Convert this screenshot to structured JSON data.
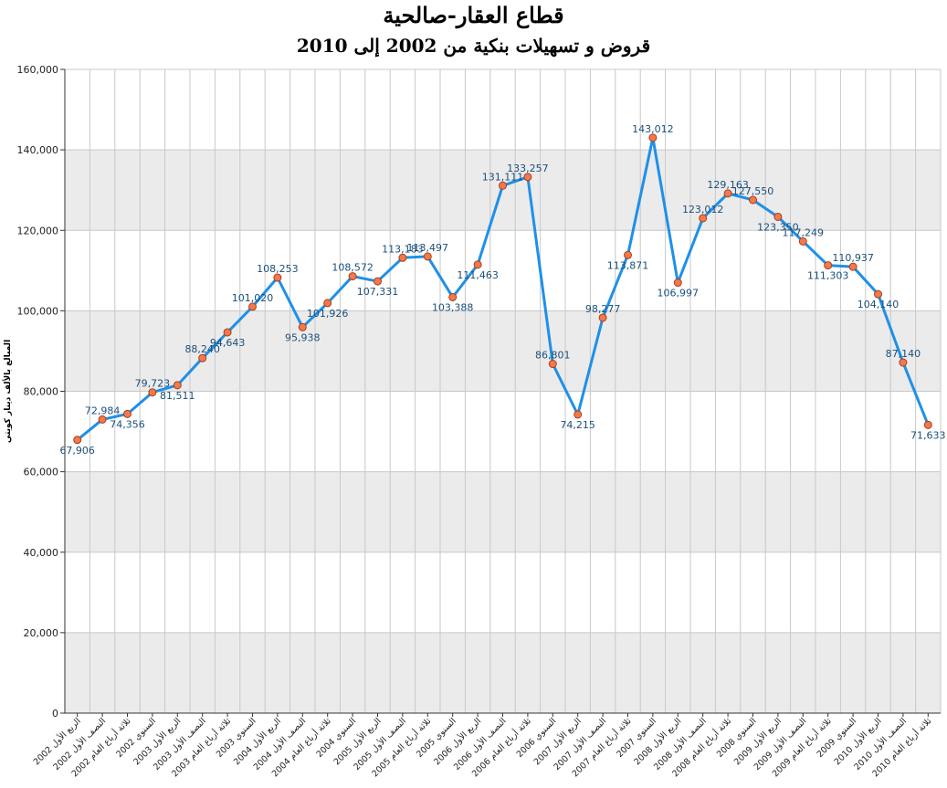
{
  "chart_data": {
    "type": "line",
    "title": "قطاع العقار-صالحية",
    "subtitle": "قروض و تسهيلات بنكية من 2002 إلى 2010",
    "ylabel": "المبالغ بالألف دينار كويتي",
    "xlabel": "",
    "ylim": [
      0,
      160000
    ],
    "yticks": [
      "0",
      "20,000",
      "40,000",
      "60,000",
      "80,000",
      "100,000",
      "120,000",
      "140,000",
      "160,000"
    ],
    "grid": "alternating horizontal bands with vertical grid lines",
    "legend": "none",
    "colors": {
      "line": "#1e90e8",
      "marker_fill": "#f07a4a",
      "marker_stroke": "#b03a1a",
      "band": "#ebebeb",
      "label": "#1a4f7a"
    },
    "categories": [
      "الربع الأول 2002",
      "النصف الأول 2002",
      "ثلاثة أرباع العام 2002",
      "السنوي 2002",
      "الربع الأول 2003",
      "النصف الأول 2003",
      "ثلاثة أرباع العام 2003",
      "السنوي 2003",
      "الربع الأول 2004",
      "النصف الأول 2004",
      "ثلاثة أرباع العام 2004",
      "السنوي 2004",
      "الربع الأول 2005",
      "النصف الأول 2005",
      "ثلاثة أرباع العام 2005",
      "السنوي 2005",
      "الربع الأول 2006",
      "النصف الأول 2006",
      "ثلاثة أرباع العام 2006",
      "السنوي 2006",
      "الربع الأول 2007",
      "النصف الأول 2007",
      "ثلاثة أرباع العام 2007",
      "السنوي 2007",
      "الربع الأول 2008",
      "النصف الأول 2008",
      "ثلاثة أرباع العام 2008",
      "السنوي 2008",
      "الربع الأول 2009",
      "النصف الأول 2009",
      "ثلاثة أرباع العام 2009",
      "السنوي 2009",
      "الربع الأول 2010",
      "النصف الأول 2010",
      "ثلاثة أرباع العام 2010"
    ],
    "values": [
      67906,
      72984,
      74356,
      79723,
      81511,
      88240,
      94643,
      101020,
      108253,
      95938,
      101926,
      108572,
      107331,
      113183,
      113497,
      103388,
      111463,
      131111,
      133257,
      86801,
      74215,
      98277,
      113871,
      143012,
      106997,
      123012,
      129163,
      127550,
      123350,
      117249,
      111303,
      110937,
      104140,
      87140,
      71633
    ],
    "data_labels": [
      "67,906",
      "72,984",
      "74,356",
      "79,723",
      "81,511",
      "88,240",
      "94,643",
      "101,020",
      "108,253",
      "95,938",
      "101,926",
      "108,572",
      "107,331",
      "113,183",
      "113,497",
      "103,388",
      "111,463",
      "131,111",
      "133,257",
      "86,801",
      "74,215",
      "98,277",
      "113,871",
      "143,012",
      "106,997",
      "123,012",
      "129,163",
      "127,550",
      "123,350",
      "117,249",
      "111,303",
      "110,937",
      "104,140",
      "87,140",
      "71,633"
    ]
  }
}
